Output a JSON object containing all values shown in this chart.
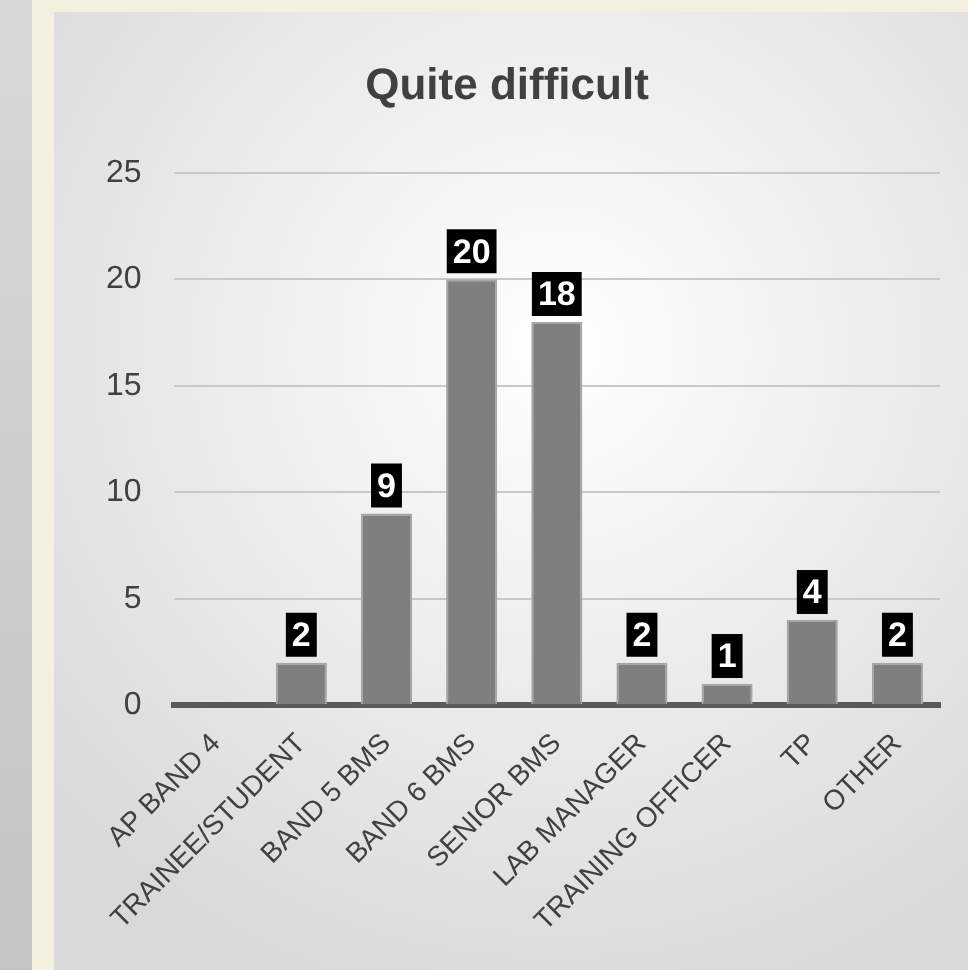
{
  "chart_data": {
    "type": "bar",
    "title": "Quite difficult",
    "categories": [
      "AP BAND 4",
      "TRAINEE/STUDENT",
      "BAND 5 BMS",
      "BAND 6 BMS",
      "SENIOR BMS",
      "LAB MANAGER",
      "TRAINING OFFICER",
      "TP",
      "OTHER"
    ],
    "values": [
      0,
      2,
      9,
      20,
      18,
      2,
      1,
      4,
      2
    ],
    "value_labels": [
      null,
      "2",
      "9",
      "20",
      "18",
      "2",
      "1",
      "4",
      "2"
    ],
    "color": "#7f7f7f",
    "ylim": [
      0,
      25
    ],
    "yticks": [
      0,
      5,
      10,
      15,
      20,
      25
    ],
    "grid": "y",
    "legend": false
  }
}
